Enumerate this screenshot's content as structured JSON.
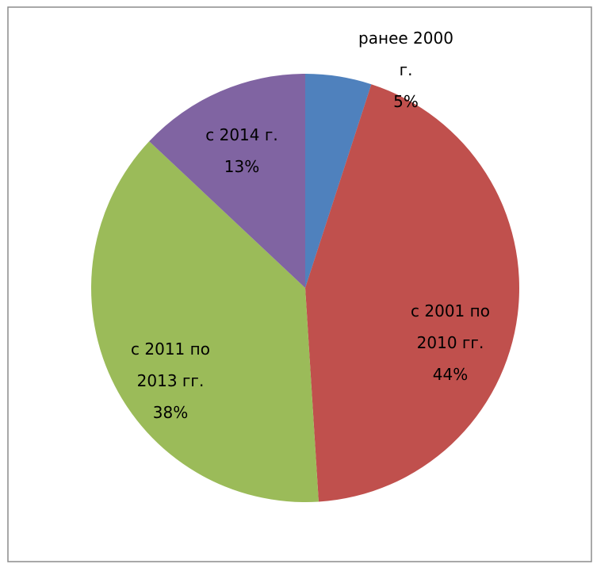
{
  "chart_data": {
    "type": "pie",
    "categories": [
      "ранее 2000 г.",
      "с 2001 по 2010 гг.",
      "с 2011 по 2013 гг.",
      "с 2014 г."
    ],
    "values": [
      5,
      44,
      38,
      13
    ],
    "value_labels": [
      "5%",
      "44%",
      "38%",
      "13%"
    ],
    "colors": [
      "#4f81bd",
      "#c0504d",
      "#9bbb59",
      "#8064a2"
    ]
  }
}
